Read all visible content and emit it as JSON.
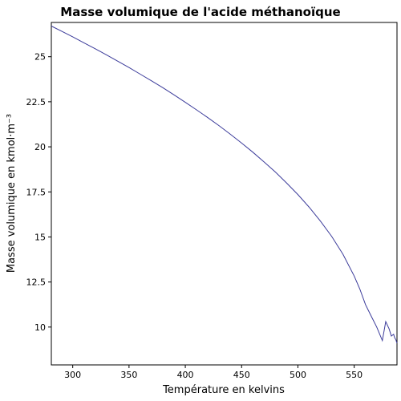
{
  "chart_data": {
    "type": "line",
    "title": "Masse volumique de l'acide méthanoïque",
    "xlabel": "Température en kelvins",
    "ylabel": "Masse volumique en kmol·m⁻³",
    "xlim": [
      281,
      588
    ],
    "ylim": [
      7.9,
      26.9
    ],
    "xticks": [
      "300",
      "350",
      "400",
      "450",
      "500",
      "550"
    ],
    "yticks": [
      "10",
      "12.5",
      "15",
      "17.5",
      "20",
      "22.5",
      "25"
    ],
    "grid": false,
    "line_color": "#3b3b9a",
    "series": [
      {
        "x": [
          281,
          290,
          300,
          310,
          320,
          330,
          340,
          350,
          360,
          370,
          380,
          390,
          400,
          410,
          420,
          430,
          440,
          450,
          460,
          470,
          480,
          490,
          500,
          510,
          520,
          530,
          540,
          550,
          555,
          560,
          565,
          570,
          575,
          578,
          581,
          583,
          585,
          586,
          587,
          588
        ],
        "y": [
          26.7,
          26.42,
          26.1,
          25.77,
          25.44,
          25.1,
          24.75,
          24.4,
          24.03,
          23.66,
          23.28,
          22.88,
          22.47,
          22.05,
          21.62,
          21.17,
          20.7,
          20.21,
          19.7,
          19.16,
          18.6,
          17.99,
          17.35,
          16.65,
          15.88,
          15.03,
          14.04,
          12.83,
          12.11,
          11.25,
          10.62,
          10.0,
          9.25,
          10.3,
          9.9,
          9.5,
          9.6,
          9.4,
          9.3,
          9.1
        ]
      }
    ]
  }
}
